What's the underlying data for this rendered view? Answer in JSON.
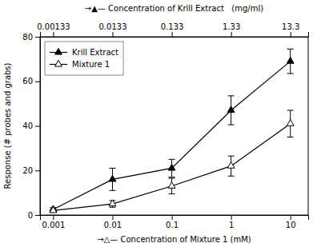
{
  "chart_data": {
    "type": "line",
    "log": "x",
    "xlabel": "→△— Concentration of Mixture 1 (mM)",
    "x2label": "→▲— Concentration of Krill Extract   (mg/ml)",
    "ylabel": "Response (# probes and grabs)",
    "x": [
      0.001,
      0.01,
      0.1,
      1.0,
      10.0
    ],
    "series": [
      {
        "name": "Krill Extract",
        "color": "black",
        "marker": "filled-triangle",
        "line_style": "solid",
        "values": [
          2.5,
          16.0,
          21.0,
          47.0,
          69.0
        ],
        "errors": [
          0.8,
          5.0,
          4.0,
          6.5,
          5.5
        ]
      },
      {
        "name": "Mixture 1",
        "color": "black",
        "marker": "open-triangle",
        "line_style": "solid",
        "values": [
          2.0,
          5.0,
          13.0,
          22.0,
          41.0
        ],
        "errors": [
          0.5,
          1.5,
          3.5,
          4.5,
          6.0
        ]
      }
    ],
    "xlim": [
      0.0006,
      20.0
    ],
    "xticks": [
      0.001,
      0.01,
      0.1,
      1,
      10
    ],
    "x2ticks": [
      {
        "value": 0.001,
        "label": "0.00133"
      },
      {
        "value": 0.01,
        "label": "0.0133"
      },
      {
        "value": 0.1,
        "label": "0.133"
      },
      {
        "value": 1,
        "label": "1.33"
      },
      {
        "value": 10,
        "label": "13.3"
      }
    ],
    "ylim": [
      0,
      80
    ],
    "yticks": [
      0,
      20,
      40,
      60,
      80
    ],
    "grid": false,
    "legend": "upper-left"
  }
}
